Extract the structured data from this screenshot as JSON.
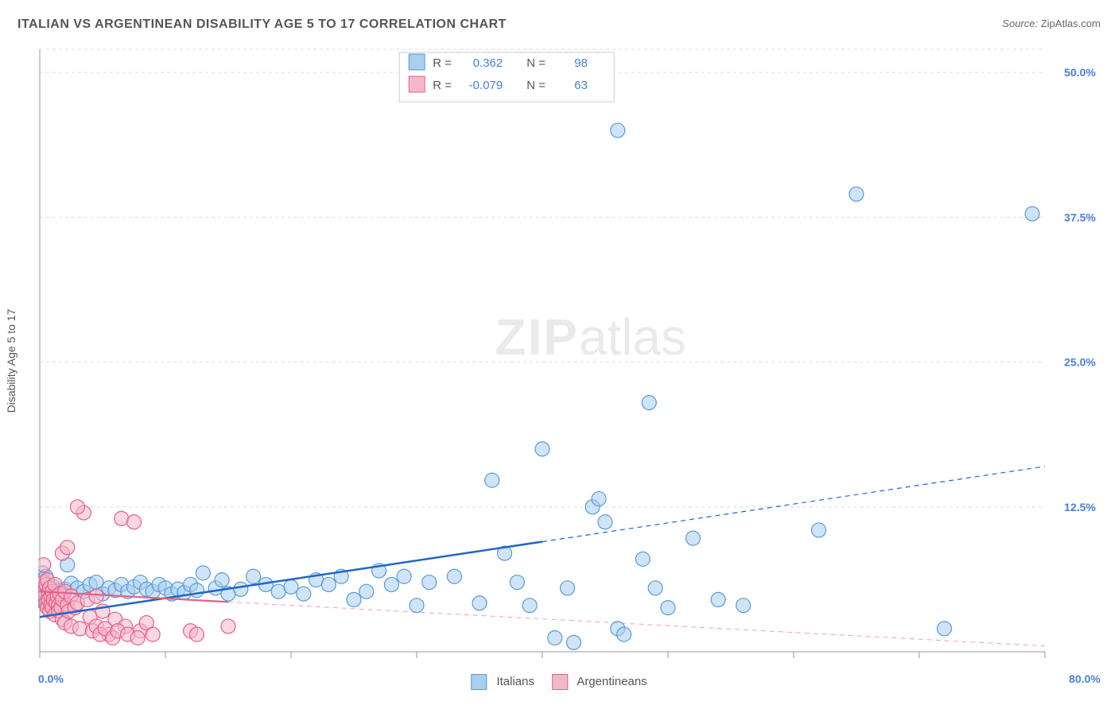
{
  "title": "ITALIAN VS ARGENTINEAN DISABILITY AGE 5 TO 17 CORRELATION CHART",
  "source_label": "Source:",
  "source_value": "ZipAtlas.com",
  "y_axis_label": "Disability Age 5 to 17",
  "watermark_zip": "ZIP",
  "watermark_atlas": "atlas",
  "chart": {
    "type": "scatter",
    "xlim": [
      0,
      80
    ],
    "ylim": [
      0,
      52
    ],
    "y_ticks": [
      12.5,
      25.0,
      37.5,
      50.0
    ],
    "y_tick_labels": [
      "12.5%",
      "25.0%",
      "37.5%",
      "50.0%"
    ],
    "x_tick_positions": [
      0,
      10,
      20,
      30,
      40,
      50,
      60,
      70,
      80
    ],
    "x_min_label": "0.0%",
    "x_max_label": "80.0%",
    "background_color": "#ffffff",
    "grid_color": "#dddddd",
    "marker_radius": 9,
    "series": [
      {
        "name": "Italians",
        "color_fill": "#a8cef0",
        "color_stroke": "#5a9bd5",
        "trend_color": "#2066c7",
        "r_value": "0.362",
        "n_value": "98",
        "trend_x_solid": [
          0,
          40
        ],
        "trend_y_solid": [
          3.0,
          9.5
        ],
        "trend_x_dash": [
          40,
          80
        ],
        "trend_y_dash": [
          9.5,
          16.0
        ],
        "points": [
          [
            0.2,
            6.8
          ],
          [
            0.2,
            6.2
          ],
          [
            0.3,
            5.4
          ],
          [
            0.3,
            5.2
          ],
          [
            0.3,
            4.8
          ],
          [
            0.4,
            4.6
          ],
          [
            0.4,
            4.4
          ],
          [
            0.4,
            4.2
          ],
          [
            0.5,
            6.5
          ],
          [
            0.5,
            5.1
          ],
          [
            0.6,
            5.8
          ],
          [
            0.6,
            4.2
          ],
          [
            0.7,
            5.4
          ],
          [
            0.8,
            5.5
          ],
          [
            0.8,
            4.8
          ],
          [
            0.9,
            5.0
          ],
          [
            1.0,
            5.2
          ],
          [
            1.0,
            4.6
          ],
          [
            1.1,
            5.6
          ],
          [
            1.2,
            4.9
          ],
          [
            1.3,
            5.2
          ],
          [
            1.4,
            4.4
          ],
          [
            1.5,
            5.3
          ],
          [
            1.6,
            4.8
          ],
          [
            1.7,
            5.1
          ],
          [
            1.8,
            4.3
          ],
          [
            1.9,
            5.0
          ],
          [
            2.0,
            5.4
          ],
          [
            2.2,
            7.5
          ],
          [
            2.5,
            5.9
          ],
          [
            3.0,
            5.5
          ],
          [
            3.5,
            5.2
          ],
          [
            4.0,
            5.8
          ],
          [
            4.5,
            6.0
          ],
          [
            5.0,
            5.0
          ],
          [
            5.5,
            5.5
          ],
          [
            6.0,
            5.3
          ],
          [
            6.5,
            5.8
          ],
          [
            7.0,
            5.2
          ],
          [
            7.5,
            5.6
          ],
          [
            8.0,
            6.0
          ],
          [
            8.5,
            5.4
          ],
          [
            9.0,
            5.2
          ],
          [
            9.5,
            5.8
          ],
          [
            10.0,
            5.5
          ],
          [
            10.5,
            5.0
          ],
          [
            11.0,
            5.4
          ],
          [
            11.5,
            5.1
          ],
          [
            12.0,
            5.8
          ],
          [
            12.5,
            5.3
          ],
          [
            13.0,
            6.8
          ],
          [
            14.0,
            5.5
          ],
          [
            14.5,
            6.2
          ],
          [
            15.0,
            5.0
          ],
          [
            16.0,
            5.4
          ],
          [
            17.0,
            6.5
          ],
          [
            18.0,
            5.8
          ],
          [
            19.0,
            5.2
          ],
          [
            20.0,
            5.6
          ],
          [
            21.0,
            5.0
          ],
          [
            22.0,
            6.2
          ],
          [
            23.0,
            5.8
          ],
          [
            24.0,
            6.5
          ],
          [
            25.0,
            4.5
          ],
          [
            26.0,
            5.2
          ],
          [
            27.0,
            7.0
          ],
          [
            28.0,
            5.8
          ],
          [
            29.0,
            6.5
          ],
          [
            30.0,
            4.0
          ],
          [
            31.0,
            6.0
          ],
          [
            33.0,
            6.5
          ],
          [
            35.0,
            4.2
          ],
          [
            36.0,
            14.8
          ],
          [
            37.0,
            8.5
          ],
          [
            38.0,
            6.0
          ],
          [
            39.0,
            4.0
          ],
          [
            40.0,
            17.5
          ],
          [
            41.0,
            1.2
          ],
          [
            42.0,
            5.5
          ],
          [
            42.5,
            0.8
          ],
          [
            44.0,
            12.5
          ],
          [
            44.5,
            13.2
          ],
          [
            45.0,
            11.2
          ],
          [
            46.0,
            2.0
          ],
          [
            46.5,
            1.5
          ],
          [
            48.0,
            8.0
          ],
          [
            48.5,
            21.5
          ],
          [
            49.0,
            5.5
          ],
          [
            50.0,
            3.8
          ],
          [
            52.0,
            9.8
          ],
          [
            54.0,
            4.5
          ],
          [
            56.0,
            4.0
          ],
          [
            46.0,
            45.0
          ],
          [
            62.0,
            10.5
          ],
          [
            65.0,
            39.5
          ],
          [
            72.0,
            2.0
          ],
          [
            79.0,
            37.8
          ]
        ]
      },
      {
        "name": "Argentineans",
        "color_fill": "#f5b8c8",
        "color_stroke": "#e85d8a",
        "trend_color": "#e85d8a",
        "r_value": "-0.079",
        "n_value": "63",
        "trend_x_solid": [
          0,
          15
        ],
        "trend_y_solid": [
          5.2,
          4.3
        ],
        "trend_x_dash": [
          15,
          80
        ],
        "trend_y_dash": [
          4.3,
          0.5
        ],
        "points": [
          [
            0.3,
            7.5
          ],
          [
            0.3,
            6.0
          ],
          [
            0.4,
            5.2
          ],
          [
            0.4,
            4.8
          ],
          [
            0.5,
            5.8
          ],
          [
            0.5,
            4.2
          ],
          [
            0.6,
            6.2
          ],
          [
            0.6,
            3.8
          ],
          [
            0.7,
            5.0
          ],
          [
            0.7,
            4.5
          ],
          [
            0.8,
            5.5
          ],
          [
            0.8,
            3.5
          ],
          [
            0.9,
            4.8
          ],
          [
            0.9,
            4.0
          ],
          [
            1.0,
            5.2
          ],
          [
            1.0,
            3.8
          ],
          [
            1.1,
            4.5
          ],
          [
            1.2,
            5.8
          ],
          [
            1.2,
            3.2
          ],
          [
            1.3,
            4.2
          ],
          [
            1.4,
            4.8
          ],
          [
            1.5,
            4.0
          ],
          [
            1.5,
            3.5
          ],
          [
            1.6,
            5.0
          ],
          [
            1.7,
            3.8
          ],
          [
            1.8,
            4.5
          ],
          [
            1.8,
            2.8
          ],
          [
            2.0,
            5.2
          ],
          [
            2.0,
            2.5
          ],
          [
            2.2,
            4.0
          ],
          [
            2.3,
            3.5
          ],
          [
            2.5,
            4.8
          ],
          [
            2.5,
            2.2
          ],
          [
            2.8,
            3.8
          ],
          [
            3.0,
            4.2
          ],
          [
            3.2,
            2.0
          ],
          [
            3.5,
            12.0
          ],
          [
            3.8,
            4.5
          ],
          [
            4.0,
            3.0
          ],
          [
            4.2,
            1.8
          ],
          [
            4.5,
            4.8
          ],
          [
            4.5,
            2.2
          ],
          [
            5.0,
            3.5
          ],
          [
            5.5,
            1.5
          ],
          [
            6.0,
            2.8
          ],
          [
            6.5,
            11.5
          ],
          [
            6.8,
            2.2
          ],
          [
            7.5,
            11.2
          ],
          [
            8.0,
            1.8
          ],
          [
            8.5,
            2.5
          ],
          [
            4.8,
            1.5
          ],
          [
            5.2,
            2.0
          ],
          [
            5.8,
            1.2
          ],
          [
            6.2,
            1.8
          ],
          [
            7.0,
            1.5
          ],
          [
            7.8,
            1.2
          ],
          [
            9.0,
            1.5
          ],
          [
            12.0,
            1.8
          ],
          [
            12.5,
            1.5
          ],
          [
            15.0,
            2.2
          ],
          [
            3.0,
            12.5
          ],
          [
            1.8,
            8.5
          ],
          [
            2.2,
            9.0
          ]
        ]
      }
    ],
    "legend_box": {
      "r_label": "R =",
      "n_label": "N ="
    },
    "bottom_legend": [
      {
        "label": "Italians",
        "swatch_class": "sw-blue"
      },
      {
        "label": "Argentineans",
        "swatch_class": "sw-pink"
      }
    ]
  }
}
